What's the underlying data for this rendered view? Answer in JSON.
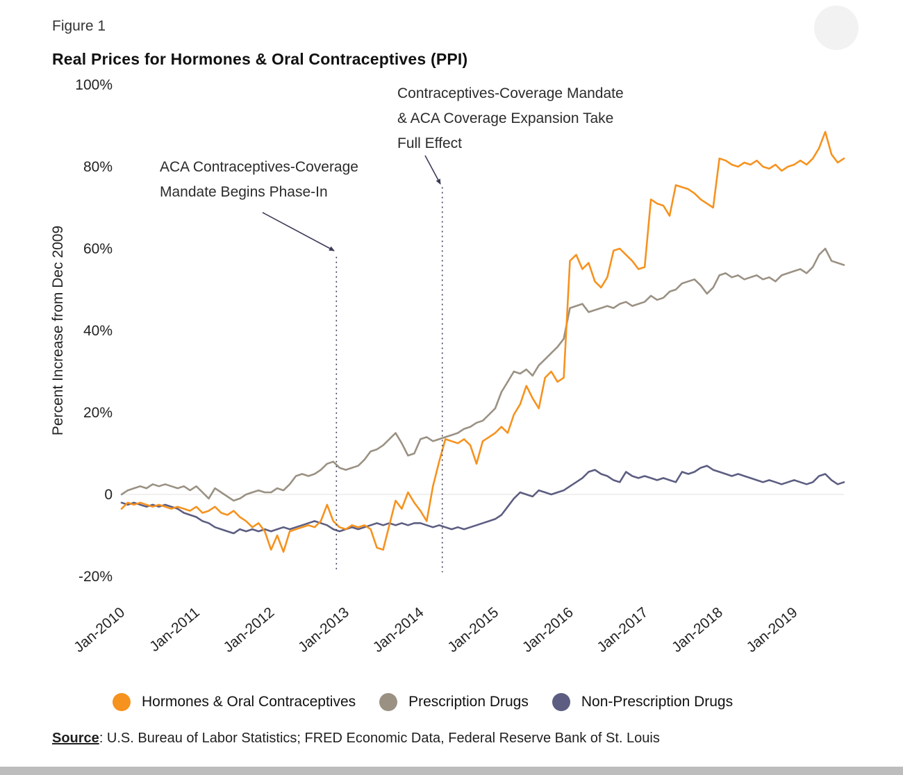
{
  "figure_label": "Figure 1",
  "title": "Real Prices for Hormones & Oral Contraceptives (PPI)",
  "source": {
    "label": "Source",
    "rest": ": U.S. Bureau of Labor Statistics; FRED Economic Data, Federal Reserve Bank of St. Louis"
  },
  "legend": [
    {
      "label": "Hormones & Oral Contraceptives",
      "color": "#F6921E"
    },
    {
      "label": "Prescription Drugs",
      "color": "#9A9183"
    },
    {
      "label": "Non-Prescription Drugs",
      "color": "#5C5D81"
    }
  ],
  "chart_data": {
    "type": "line",
    "title": "Real Prices for Hormones & Oral Contraceptives (PPI)",
    "xlabel": "",
    "ylabel": "Percent Increase from Dec 2009",
    "ylim": [
      -20,
      100
    ],
    "grid": "zero-line-only",
    "legend_position": "bottom",
    "x_unit": "month",
    "x_start": "Jan-2010",
    "x_end": "Sep-2019",
    "yticks": [
      {
        "v": 100,
        "label": "100%"
      },
      {
        "v": 80,
        "label": "80%"
      },
      {
        "v": 60,
        "label": "60%"
      },
      {
        "v": 40,
        "label": "40%"
      },
      {
        "v": 20,
        "label": "20%"
      },
      {
        "v": 0,
        "label": "0"
      },
      {
        "v": -20,
        "label": "-20%"
      }
    ],
    "xticks": [
      {
        "index": 0,
        "label": "Jan-2010"
      },
      {
        "index": 12,
        "label": "Jan-2011"
      },
      {
        "index": 24,
        "label": "Jan-2012"
      },
      {
        "index": 36,
        "label": "Jan-2013"
      },
      {
        "index": 48,
        "label": "Jan-2014"
      },
      {
        "index": 60,
        "label": "Jan-2015"
      },
      {
        "index": 72,
        "label": "Jan-2016"
      },
      {
        "index": 84,
        "label": "Jan-2017"
      },
      {
        "index": 96,
        "label": "Jan-2018"
      },
      {
        "index": 108,
        "label": "Jan-2019"
      }
    ],
    "series": [
      {
        "name": "Hormones & Oral Contraceptives",
        "color": "#F6921E",
        "values": [
          -3.5,
          -2.0,
          -2.5,
          -2.0,
          -2.5,
          -3.0,
          -2.5,
          -3.0,
          -3.5,
          -3.0,
          -3.5,
          -4.0,
          -3.0,
          -4.5,
          -4.0,
          -3.0,
          -4.5,
          -5.0,
          -4.0,
          -5.5,
          -6.5,
          -8.0,
          -7.0,
          -9.0,
          -13.5,
          -10.0,
          -14.0,
          -9.0,
          -8.5,
          -8.0,
          -7.5,
          -8.0,
          -6.5,
          -2.5,
          -6.5,
          -8.0,
          -8.5,
          -7.5,
          -8.0,
          -7.5,
          -8.5,
          -13.0,
          -13.5,
          -7.5,
          -1.5,
          -3.5,
          0.5,
          -2.0,
          -4.0,
          -6.5,
          2.0,
          8.0,
          13.5,
          13.0,
          12.5,
          13.5,
          12.0,
          7.5,
          13.0,
          14.0,
          15.0,
          16.5,
          15.0,
          19.5,
          22.0,
          26.5,
          23.5,
          21.0,
          28.5,
          30.0,
          27.5,
          28.5,
          57.0,
          58.5,
          55.0,
          56.5,
          52.0,
          50.5,
          53.0,
          59.5,
          60.0,
          58.5,
          57.0,
          55.0,
          55.5,
          72.0,
          71.0,
          70.5,
          68.0,
          75.5,
          75.0,
          74.5,
          73.5,
          72.0,
          71.0,
          70.0,
          82.0,
          81.5,
          80.5,
          80.0,
          81.0,
          80.5,
          81.5,
          80.0,
          79.5,
          80.5,
          79.0,
          80.0,
          80.5,
          81.5,
          80.5,
          82.0,
          84.5,
          88.5,
          83.0,
          81.0,
          82.0
        ]
      },
      {
        "name": "Prescription Drugs",
        "color": "#9A9183",
        "values": [
          0.0,
          1.0,
          1.5,
          2.0,
          1.5,
          2.5,
          2.0,
          2.5,
          2.0,
          1.5,
          2.0,
          1.0,
          2.0,
          0.5,
          -1.0,
          1.5,
          0.5,
          -0.5,
          -1.5,
          -1.0,
          0.0,
          0.5,
          1.0,
          0.5,
          0.5,
          1.5,
          1.0,
          2.5,
          4.5,
          5.0,
          4.5,
          5.0,
          6.0,
          7.5,
          8.0,
          6.5,
          6.0,
          6.5,
          7.0,
          8.5,
          10.5,
          11.0,
          12.0,
          13.5,
          15.0,
          12.5,
          9.5,
          10.0,
          13.5,
          14.0,
          13.0,
          13.5,
          14.0,
          14.5,
          15.0,
          16.0,
          16.5,
          17.5,
          18.0,
          19.5,
          21.0,
          25.0,
          27.5,
          30.0,
          29.5,
          30.5,
          29.0,
          31.5,
          33.0,
          34.5,
          36.0,
          38.0,
          45.5,
          46.0,
          46.5,
          44.5,
          45.0,
          45.5,
          46.0,
          45.5,
          46.5,
          47.0,
          46.0,
          46.5,
          47.0,
          48.5,
          47.5,
          48.0,
          49.5,
          50.0,
          51.5,
          52.0,
          52.5,
          51.0,
          49.0,
          50.5,
          53.5,
          54.0,
          53.0,
          53.5,
          52.5,
          53.0,
          53.5,
          52.5,
          53.0,
          52.0,
          53.5,
          54.0,
          54.5,
          55.0,
          54.0,
          55.5,
          58.5,
          60.0,
          57.0,
          56.5,
          56.0
        ]
      },
      {
        "name": "Non-Prescription Drugs",
        "color": "#5C5D81",
        "values": [
          -2.0,
          -2.5,
          -2.0,
          -2.5,
          -3.0,
          -2.5,
          -3.0,
          -2.5,
          -3.0,
          -3.5,
          -4.5,
          -5.0,
          -5.5,
          -6.5,
          -7.0,
          -8.0,
          -8.5,
          -9.0,
          -9.5,
          -8.5,
          -9.0,
          -8.5,
          -9.0,
          -8.5,
          -9.0,
          -8.5,
          -8.0,
          -8.5,
          -8.0,
          -7.5,
          -7.0,
          -6.5,
          -7.0,
          -7.5,
          -8.5,
          -9.0,
          -8.5,
          -8.0,
          -8.5,
          -8.0,
          -7.5,
          -7.0,
          -7.5,
          -7.0,
          -7.5,
          -7.0,
          -7.5,
          -7.0,
          -7.0,
          -7.5,
          -8.0,
          -7.5,
          -8.0,
          -8.5,
          -8.0,
          -8.5,
          -8.0,
          -7.5,
          -7.0,
          -6.5,
          -6.0,
          -5.0,
          -3.0,
          -1.0,
          0.5,
          0.0,
          -0.5,
          1.0,
          0.5,
          0.0,
          0.5,
          1.0,
          2.0,
          3.0,
          4.0,
          5.5,
          6.0,
          5.0,
          4.5,
          3.5,
          3.0,
          5.5,
          4.5,
          4.0,
          4.5,
          4.0,
          3.5,
          4.0,
          3.5,
          3.0,
          5.5,
          5.0,
          5.5,
          6.5,
          7.0,
          6.0,
          5.5,
          5.0,
          4.5,
          5.0,
          4.5,
          4.0,
          3.5,
          3.0,
          3.5,
          3.0,
          2.5,
          3.0,
          3.5,
          3.0,
          2.5,
          3.0,
          4.5,
          5.0,
          3.5,
          2.5,
          3.0
        ]
      }
    ],
    "annotations": [
      {
        "lines": [
          "ACA Contraceptives-Coverage",
          "Mandate Begins Phase-In"
        ],
        "month_index": 34.5,
        "line_top": 58,
        "line_bottom": -19
      },
      {
        "lines": [
          "Contraceptives-Coverage Mandate",
          "& ACA Coverage Expansion Take",
          "Full Effect"
        ],
        "month_index": 51.5,
        "line_top": 75,
        "line_bottom": -19
      }
    ],
    "annotation_color": "#3B3B58",
    "zero_line_color": "#E9E7E3"
  }
}
